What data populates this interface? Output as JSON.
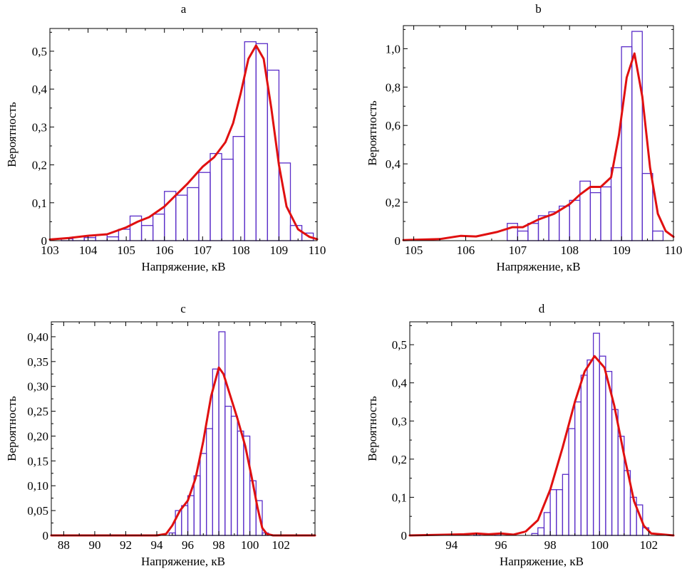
{
  "colors": {
    "bar_edge": "#5a2dc8",
    "curve": "#e01010",
    "axis": "#000000"
  },
  "chart_data": [
    {
      "type": "bar",
      "title": "a",
      "xlabel": "Напряжение, кВ",
      "ylabel": "Вероятность",
      "xlim": [
        103,
        110
      ],
      "ylim": [
        0,
        0.56
      ],
      "xticks": [
        103,
        104,
        105,
        106,
        107,
        108,
        109,
        110
      ],
      "xtick_labels": [
        "103",
        "104",
        "105",
        "106",
        "107",
        "108",
        "109",
        "110"
      ],
      "yticks": [
        0,
        0.1,
        0.2,
        0.3,
        0.4,
        0.5
      ],
      "ytick_labels": [
        "0",
        "0,1",
        "0,2",
        "0,3",
        "0,4",
        "0,5"
      ],
      "bin_width": 0.3,
      "bins": [
        {
          "x": 103.0,
          "y": 0.0
        },
        {
          "x": 103.3,
          "y": 0.005
        },
        {
          "x": 103.6,
          "y": 0.01
        },
        {
          "x": 103.9,
          "y": 0.008
        },
        {
          "x": 104.2,
          "y": 0.015
        },
        {
          "x": 104.5,
          "y": 0.01
        },
        {
          "x": 104.8,
          "y": 0.03
        },
        {
          "x": 105.1,
          "y": 0.065
        },
        {
          "x": 105.4,
          "y": 0.04
        },
        {
          "x": 105.7,
          "y": 0.07
        },
        {
          "x": 106.0,
          "y": 0.13
        },
        {
          "x": 106.3,
          "y": 0.12
        },
        {
          "x": 106.6,
          "y": 0.14
        },
        {
          "x": 106.9,
          "y": 0.18
        },
        {
          "x": 107.2,
          "y": 0.23
        },
        {
          "x": 107.5,
          "y": 0.215
        },
        {
          "x": 107.8,
          "y": 0.275
        },
        {
          "x": 108.1,
          "y": 0.525
        },
        {
          "x": 108.4,
          "y": 0.52
        },
        {
          "x": 108.7,
          "y": 0.45
        },
        {
          "x": 109.0,
          "y": 0.205
        },
        {
          "x": 109.3,
          "y": 0.04
        },
        {
          "x": 109.6,
          "y": 0.02
        }
      ],
      "curve": {
        "x": [
          103.0,
          103.5,
          104.0,
          104.5,
          105.0,
          105.3,
          105.6,
          106.0,
          106.3,
          106.6,
          107.0,
          107.3,
          107.6,
          107.8,
          108.0,
          108.2,
          108.4,
          108.6,
          108.8,
          109.0,
          109.2,
          109.5,
          109.8,
          110.0
        ],
        "y": [
          0.003,
          0.007,
          0.013,
          0.017,
          0.035,
          0.05,
          0.062,
          0.09,
          0.12,
          0.15,
          0.195,
          0.22,
          0.26,
          0.31,
          0.39,
          0.48,
          0.515,
          0.48,
          0.35,
          0.2,
          0.09,
          0.03,
          0.01,
          0.004
        ]
      }
    },
    {
      "type": "bar",
      "title": "b",
      "xlabel": "Напряжение, кВ",
      "ylabel": "Вероятность",
      "xlim": [
        104.8,
        110.0
      ],
      "ylim": [
        0,
        1.12
      ],
      "xticks": [
        105,
        106,
        107,
        108,
        109,
        110
      ],
      "xtick_labels": [
        "105",
        "106",
        "107",
        "108",
        "109",
        "110"
      ],
      "yticks": [
        0,
        0.2,
        0.4,
        0.6,
        0.8,
        1.0
      ],
      "ytick_labels": [
        "0",
        "0,2",
        "0,4",
        "0,6",
        "0,8",
        "1,0"
      ],
      "bin_width": 0.2,
      "bins": [
        {
          "x": 106.8,
          "y": 0.09
        },
        {
          "x": 107.0,
          "y": 0.05
        },
        {
          "x": 107.2,
          "y": 0.09
        },
        {
          "x": 107.4,
          "y": 0.13
        },
        {
          "x": 107.6,
          "y": 0.15
        },
        {
          "x": 107.8,
          "y": 0.18
        },
        {
          "x": 108.0,
          "y": 0.21
        },
        {
          "x": 108.2,
          "y": 0.31
        },
        {
          "x": 108.4,
          "y": 0.25
        },
        {
          "x": 108.6,
          "y": 0.28
        },
        {
          "x": 108.8,
          "y": 0.38
        },
        {
          "x": 109.0,
          "y": 1.01
        },
        {
          "x": 109.2,
          "y": 1.09
        },
        {
          "x": 109.4,
          "y": 0.35
        },
        {
          "x": 109.6,
          "y": 0.05
        }
      ],
      "curve": {
        "x": [
          104.8,
          105.5,
          105.9,
          106.2,
          106.6,
          106.9,
          107.1,
          107.4,
          107.7,
          108.0,
          108.2,
          108.4,
          108.6,
          108.8,
          108.95,
          109.1,
          109.25,
          109.4,
          109.55,
          109.7,
          109.85,
          110.0
        ],
        "y": [
          0.003,
          0.008,
          0.025,
          0.022,
          0.045,
          0.07,
          0.07,
          0.11,
          0.14,
          0.19,
          0.24,
          0.28,
          0.28,
          0.33,
          0.55,
          0.85,
          0.975,
          0.75,
          0.38,
          0.14,
          0.05,
          0.02
        ]
      }
    },
    {
      "type": "bar",
      "title": "c",
      "xlabel": "Напряжение, кВ",
      "ylabel": "Вероятность",
      "xlim": [
        87.2,
        104.2
      ],
      "ylim": [
        0,
        0.43
      ],
      "xticks": [
        88,
        90,
        92,
        94,
        96,
        98,
        100,
        102
      ],
      "xtick_labels": [
        "88",
        "90",
        "92",
        "94",
        "96",
        "98",
        "100",
        "102"
      ],
      "yticks": [
        0,
        0.05,
        0.1,
        0.15,
        0.2,
        0.25,
        0.3,
        0.35,
        0.4
      ],
      "ytick_labels": [
        "0",
        "0,05",
        "0,10",
        "0,15",
        "0,20",
        "0,25",
        "0,30",
        "0,35",
        "0,40"
      ],
      "bin_width": 0.4,
      "bins": [
        {
          "x": 94.8,
          "y": 0.005
        },
        {
          "x": 95.2,
          "y": 0.05
        },
        {
          "x": 95.6,
          "y": 0.06
        },
        {
          "x": 96.0,
          "y": 0.08
        },
        {
          "x": 96.4,
          "y": 0.12
        },
        {
          "x": 96.8,
          "y": 0.165
        },
        {
          "x": 97.2,
          "y": 0.215
        },
        {
          "x": 97.6,
          "y": 0.335
        },
        {
          "x": 98.0,
          "y": 0.41
        },
        {
          "x": 98.4,
          "y": 0.26
        },
        {
          "x": 98.8,
          "y": 0.24
        },
        {
          "x": 99.2,
          "y": 0.21
        },
        {
          "x": 99.6,
          "y": 0.2
        },
        {
          "x": 100.0,
          "y": 0.11
        },
        {
          "x": 100.4,
          "y": 0.07
        },
        {
          "x": 100.8,
          "y": 0.005
        }
      ],
      "curve": {
        "x": [
          87.2,
          94.0,
          94.6,
          95.0,
          95.5,
          96.0,
          96.5,
          97.0,
          97.5,
          98.0,
          98.3,
          98.7,
          99.2,
          99.7,
          100.1,
          100.5,
          100.8,
          101.1,
          101.5,
          104.2
        ],
        "y": [
          0.0,
          0.0,
          0.003,
          0.02,
          0.05,
          0.07,
          0.115,
          0.19,
          0.28,
          0.338,
          0.325,
          0.285,
          0.235,
          0.18,
          0.12,
          0.055,
          0.015,
          0.003,
          0.0,
          0.0
        ]
      }
    },
    {
      "type": "bar",
      "title": "d",
      "xlabel": "Напряжение, кВ",
      "ylabel": "Вероятность",
      "xlim": [
        92.3,
        103.0
      ],
      "ylim": [
        0,
        0.56
      ],
      "xticks": [
        94,
        96,
        98,
        100,
        102
      ],
      "xtick_labels": [
        "94",
        "96",
        "98",
        "100",
        "102"
      ],
      "yticks": [
        0,
        0.1,
        0.2,
        0.3,
        0.4,
        0.5
      ],
      "ytick_labels": [
        "0",
        "0,1",
        "0,2",
        "0,3",
        "0,4",
        "0,5"
      ],
      "bin_width": 0.25,
      "bins": [
        {
          "x": 94.9,
          "y": 0.005
        },
        {
          "x": 95.75,
          "y": 0.005
        },
        {
          "x": 97.25,
          "y": 0.005
        },
        {
          "x": 97.5,
          "y": 0.02
        },
        {
          "x": 97.75,
          "y": 0.06
        },
        {
          "x": 98.0,
          "y": 0.12
        },
        {
          "x": 98.25,
          "y": 0.12
        },
        {
          "x": 98.5,
          "y": 0.16
        },
        {
          "x": 98.75,
          "y": 0.28
        },
        {
          "x": 99.0,
          "y": 0.35
        },
        {
          "x": 99.25,
          "y": 0.42
        },
        {
          "x": 99.5,
          "y": 0.46
        },
        {
          "x": 99.75,
          "y": 0.53
        },
        {
          "x": 100.0,
          "y": 0.47
        },
        {
          "x": 100.25,
          "y": 0.43
        },
        {
          "x": 100.5,
          "y": 0.33
        },
        {
          "x": 100.75,
          "y": 0.26
        },
        {
          "x": 101.0,
          "y": 0.17
        },
        {
          "x": 101.25,
          "y": 0.1
        },
        {
          "x": 101.5,
          "y": 0.08
        },
        {
          "x": 101.75,
          "y": 0.02
        }
      ],
      "curve": {
        "x": [
          92.3,
          94.5,
          95.0,
          95.5,
          96.0,
          96.5,
          97.0,
          97.5,
          98.0,
          98.5,
          99.0,
          99.4,
          99.8,
          100.2,
          100.6,
          101.0,
          101.4,
          101.8,
          102.1,
          103.0
        ],
        "y": [
          0.0,
          0.003,
          0.005,
          0.003,
          0.005,
          0.002,
          0.01,
          0.04,
          0.12,
          0.23,
          0.35,
          0.43,
          0.47,
          0.44,
          0.34,
          0.21,
          0.09,
          0.025,
          0.005,
          0.0
        ]
      }
    }
  ]
}
